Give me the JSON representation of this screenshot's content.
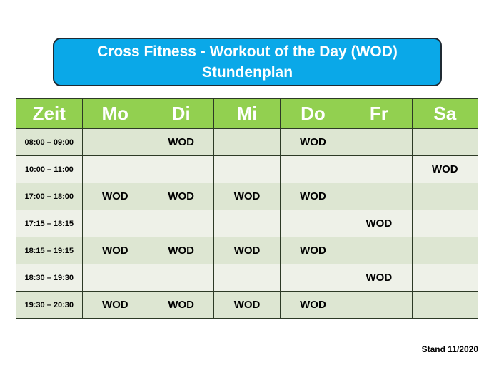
{
  "title": {
    "line1": "Cross Fitness - Workout of the Day (WOD)",
    "line2": "Stundenplan"
  },
  "colors": {
    "title_bg": "#0aa8e8",
    "header_bg": "#92d050",
    "row_dark": "#dde6d2",
    "row_light": "#eef1e8"
  },
  "table": {
    "headers": [
      "Zeit",
      "Mo",
      "Di",
      "Mi",
      "Do",
      "Fr",
      "Sa"
    ],
    "rows": [
      [
        "08:00 – 09:00",
        "",
        "WOD",
        "",
        "WOD",
        "",
        ""
      ],
      [
        "10:00 – 11:00",
        "",
        "",
        "",
        "",
        "",
        "WOD"
      ],
      [
        "17:00 – 18:00",
        "WOD",
        "WOD",
        "WOD",
        "WOD",
        "",
        ""
      ],
      [
        "17:15 – 18:15",
        "",
        "",
        "",
        "",
        "WOD",
        ""
      ],
      [
        "18:15 – 19:15",
        "WOD",
        "WOD",
        "WOD",
        "WOD",
        "",
        ""
      ],
      [
        "18:30 – 19:30",
        "",
        "",
        "",
        "",
        "WOD",
        ""
      ],
      [
        "19:30 – 20:30",
        "WOD",
        "WOD",
        "WOD",
        "WOD",
        "",
        ""
      ]
    ]
  },
  "footer": {
    "stand": "Stand 11/2020"
  }
}
